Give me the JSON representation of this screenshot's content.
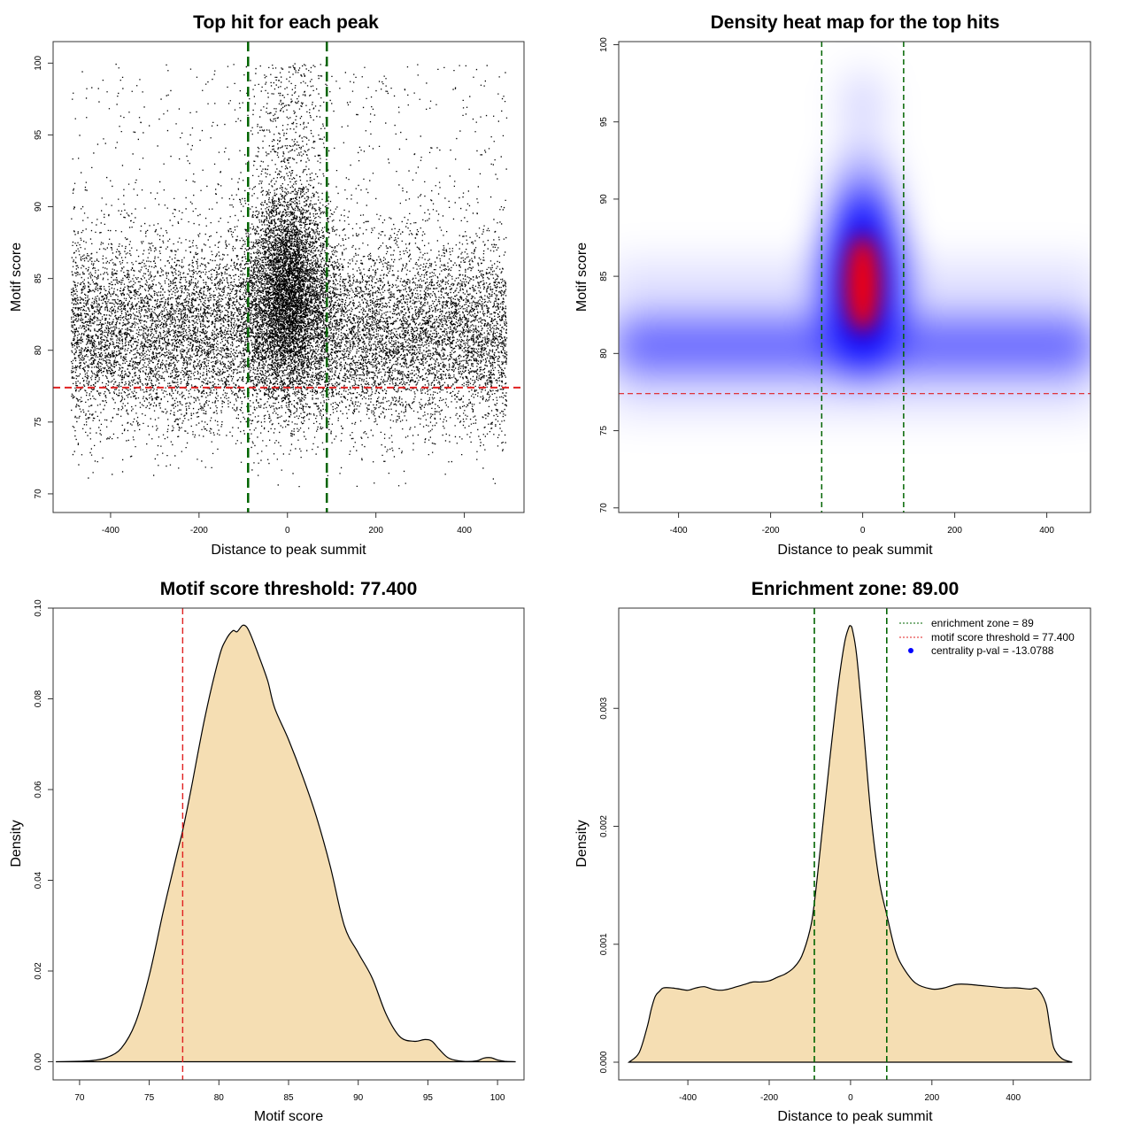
{
  "chart_data": [
    {
      "id": "scatter",
      "type": "scatter",
      "title": "Top hit for each peak",
      "xlabel": "Distance to peak summit",
      "ylabel": "Motif score",
      "xlim": [
        -530,
        535
      ],
      "ylim": [
        68.7,
        101.5
      ],
      "xticks": [
        -400,
        -200,
        0,
        200,
        400
      ],
      "yticks": [
        70,
        75,
        80,
        85,
        90,
        95,
        100
      ],
      "xtick_labels": [
        "-400",
        "-200",
        "0",
        "200",
        "400"
      ],
      "ytick_labels": [
        "70",
        "75",
        "80",
        "85",
        "90",
        "95",
        "100"
      ],
      "threshold": 77.4,
      "enrichment_zone": [
        -89,
        89
      ],
      "point_count_approx": 20000,
      "x_range": [
        -490,
        495
      ],
      "colors": {
        "points": "#000000",
        "threshold": "#e02020",
        "zone": "#006400"
      }
    },
    {
      "id": "heatmap",
      "type": "heatmap",
      "title": "Density heat map for the top hits",
      "xlabel": "Distance to peak summit",
      "ylabel": "Motif score",
      "xlim": [
        -530,
        495
      ],
      "ylim": [
        69.7,
        100.2
      ],
      "xticks": [
        -400,
        -200,
        0,
        200,
        400
      ],
      "yticks": [
        70,
        75,
        80,
        85,
        90,
        95,
        100
      ],
      "xtick_labels": [
        "-400",
        "-200",
        "0",
        "200",
        "400"
      ],
      "ytick_labels": [
        "70",
        "75",
        "80",
        "85",
        "90",
        "95",
        "100"
      ],
      "threshold": 77.4,
      "enrichment_zone": [
        -89,
        89
      ],
      "hotspot": {
        "x": 0,
        "y": 84.5
      },
      "colors": {
        "low": "#ffffff",
        "mid": "#0000ff",
        "high": "#ff0000",
        "threshold": "#e02020",
        "zone": "#006400"
      }
    },
    {
      "id": "score-density",
      "type": "area",
      "title": "Motif score threshold: 77.400",
      "xlabel": "Motif score",
      "ylabel": "Density",
      "xlim": [
        68.1,
        101.9
      ],
      "ylim": [
        -0.004,
        0.1
      ],
      "xticks": [
        70,
        75,
        80,
        85,
        90,
        95,
        100
      ],
      "yticks": [
        0,
        0.02,
        0.04,
        0.06,
        0.08,
        0.1
      ],
      "xtick_labels": [
        "70",
        "75",
        "80",
        "85",
        "90",
        "95",
        "100"
      ],
      "ytick_labels": [
        "0.00",
        "0.02",
        "0.04",
        "0.06",
        "0.08",
        "0.10"
      ],
      "threshold": 77.4,
      "x": [
        68.3,
        70,
        71,
        72,
        73,
        74,
        75,
        76,
        77,
        77.4,
        78,
        79,
        80,
        80.5,
        81,
        81.3,
        81.7,
        82,
        82.3,
        82.8,
        83.5,
        84,
        85,
        86,
        87,
        88,
        89,
        90,
        91,
        92,
        93,
        94,
        94.8,
        95.3,
        95.8,
        96.5,
        97.5,
        98.5,
        99,
        99.5,
        100,
        100.5,
        101.3
      ],
      "y": [
        0,
        0.0001,
        0.0003,
        0.001,
        0.003,
        0.0085,
        0.019,
        0.033,
        0.046,
        0.051,
        0.06,
        0.076,
        0.089,
        0.093,
        0.095,
        0.0948,
        0.0962,
        0.0958,
        0.094,
        0.09,
        0.084,
        0.078,
        0.071,
        0.063,
        0.054,
        0.043,
        0.03,
        0.024,
        0.0185,
        0.0105,
        0.0055,
        0.0045,
        0.0049,
        0.0045,
        0.0028,
        0.0008,
        0.0001,
        0.0002,
        0.0008,
        0.0009,
        0.0004,
        0.0001,
        0
      ],
      "colors": {
        "fill": "#f5deb3",
        "line": "#000000",
        "threshold": "#e02020"
      }
    },
    {
      "id": "distance-density",
      "type": "area",
      "title": "Enrichment zone: 89.00",
      "xlabel": "Distance to peak summit",
      "ylabel": "Density",
      "xlim": [
        -570,
        590
      ],
      "ylim": [
        -0.00015,
        0.00385
      ],
      "xticks": [
        -400,
        -200,
        0,
        200,
        400
      ],
      "yticks": [
        0,
        0.001,
        0.002,
        0.003
      ],
      "xtick_labels": [
        "-400",
        "-200",
        "0",
        "200",
        "400"
      ],
      "ytick_labels": [
        "0.000",
        "0.001",
        "0.002",
        "0.003"
      ],
      "enrichment_zone": [
        -89,
        89
      ],
      "x": [
        -545,
        -520,
        -500,
        -490,
        -480,
        -470,
        -460,
        -440,
        -420,
        -400,
        -380,
        -360,
        -340,
        -320,
        -300,
        -280,
        -260,
        -240,
        -220,
        -200,
        -180,
        -160,
        -140,
        -120,
        -100,
        -89,
        -70,
        -50,
        -30,
        -15,
        -5,
        0,
        5,
        15,
        30,
        50,
        70,
        89,
        110,
        130,
        160,
        200,
        230,
        260,
        290,
        320,
        350,
        380,
        410,
        440,
        460,
        480,
        490,
        500,
        520,
        545
      ],
      "y": [
        0,
        8e-05,
        0.0003,
        0.00045,
        0.00056,
        0.0006,
        0.00063,
        0.00063,
        0.00062,
        0.00061,
        0.00063,
        0.00064,
        0.00062,
        0.00061,
        0.00062,
        0.00064,
        0.00066,
        0.00068,
        0.00068,
        0.00069,
        0.00072,
        0.00075,
        0.0008,
        0.0009,
        0.00112,
        0.00135,
        0.00195,
        0.0026,
        0.0032,
        0.00355,
        0.00368,
        0.0037,
        0.00366,
        0.00345,
        0.0029,
        0.0021,
        0.00155,
        0.00125,
        0.00095,
        0.0008,
        0.00067,
        0.00062,
        0.00063,
        0.00066,
        0.00066,
        0.00065,
        0.00064,
        0.00063,
        0.00063,
        0.00062,
        0.00062,
        0.0005,
        0.0003,
        0.00012,
        3e-05,
        0
      ],
      "legend": [
        "enrichment zone = 89",
        "motif score threshold = 77.400",
        "centrality p-val = -13.0788"
      ],
      "colors": {
        "fill": "#f5deb3",
        "line": "#000000",
        "zone": "#006400",
        "threshold": "#e02020",
        "marker": "#0000ff"
      }
    }
  ]
}
